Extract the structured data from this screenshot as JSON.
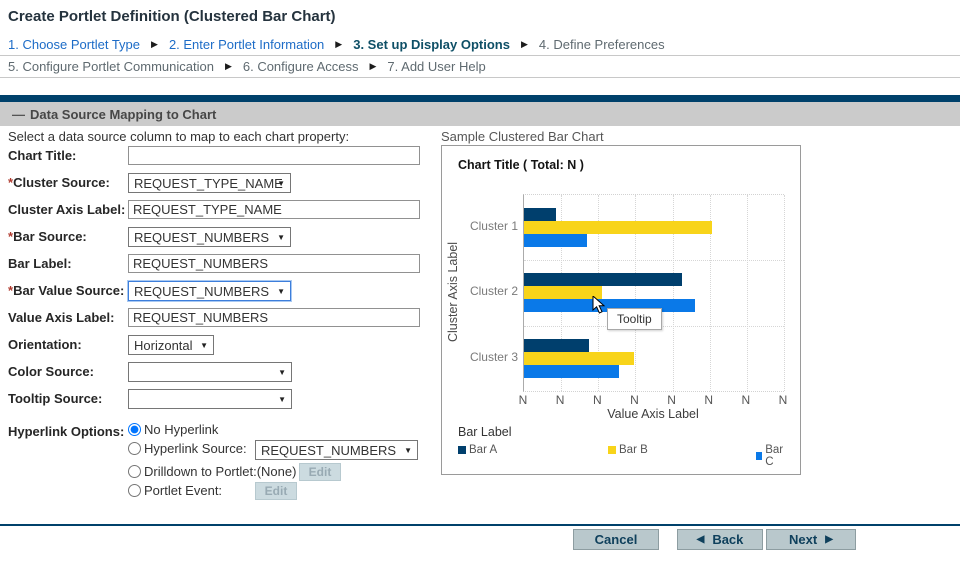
{
  "page": {
    "title": "Create Portlet Definition (Clustered Bar Chart)"
  },
  "icons": {
    "dropdown": "▼"
  },
  "wizard": {
    "separator": "▶",
    "row1": [
      {
        "label": "1. Choose Portlet Type",
        "state": "link"
      },
      {
        "label": "2. Enter Portlet Information",
        "state": "link"
      },
      {
        "label": "3. Set up Display Options",
        "state": "current"
      },
      {
        "label": "4. Define Preferences",
        "state": "upcoming"
      }
    ],
    "row2": [
      {
        "label": "5. Configure Portlet Communication",
        "state": "upcoming"
      },
      {
        "label": "6. Configure Access",
        "state": "upcoming"
      },
      {
        "label": "7. Add User Help",
        "state": "upcoming"
      }
    ]
  },
  "section": {
    "collapse_glyph": "—",
    "title": "Data Source Mapping to Chart"
  },
  "form": {
    "intro": "Select a data source column to map to each chart property:",
    "required_marker": "*",
    "chart_title": {
      "label": "Chart Title:",
      "value": ""
    },
    "cluster_source": {
      "label": "Cluster Source:",
      "value": "REQUEST_TYPE_NAME",
      "required": true
    },
    "cluster_axis_label": {
      "label": "Cluster Axis Label:",
      "value": "REQUEST_TYPE_NAME"
    },
    "bar_source": {
      "label": "Bar Source:",
      "value": "REQUEST_NUMBERS",
      "required": true
    },
    "bar_label": {
      "label": "Bar Label:",
      "value": "REQUEST_NUMBERS"
    },
    "bar_value_source": {
      "label": "Bar Value Source:",
      "value": "REQUEST_NUMBERS",
      "required": true,
      "focused": true
    },
    "value_axis_label": {
      "label": "Value Axis Label:",
      "value": "REQUEST_NUMBERS"
    },
    "orientation": {
      "label": "Orientation:",
      "value": "Horizontal"
    },
    "color_source": {
      "label": "Color Source:",
      "value": ""
    },
    "tooltip_source": {
      "label": "Tooltip Source:",
      "value": ""
    },
    "hyperlink": {
      "label": "Hyperlink Options:",
      "options": [
        {
          "label": "No Hyperlink",
          "selected": true
        },
        {
          "label": "Hyperlink Source:",
          "selected": false,
          "value": "REQUEST_NUMBERS"
        },
        {
          "label": "Drilldown to Portlet:",
          "selected": false,
          "value_note": "(None)",
          "button": "Edit"
        },
        {
          "label": "Portlet Event:",
          "selected": false,
          "button": "Edit"
        }
      ]
    }
  },
  "sample": {
    "caption": "Sample Clustered Bar Chart",
    "tooltip": "Tooltip"
  },
  "chart_data": {
    "type": "bar",
    "orientation": "horizontal",
    "title": "Chart Title ( Total: N )",
    "cluster_axis_label": "Cluster Axis Label",
    "value_axis_label": "Value Axis Label",
    "bar_label_heading": "Bar Label",
    "categories": [
      "Cluster 1",
      "Cluster 2",
      "Cluster 3"
    ],
    "series": [
      {
        "name": "Bar A",
        "color": "#003f6d",
        "values": [
          0.85,
          4.25,
          1.75
        ]
      },
      {
        "name": "Bar B",
        "color": "#f8d41a",
        "values": [
          5.05,
          2.1,
          2.95
        ]
      },
      {
        "name": "Bar C",
        "color": "#0a79e8",
        "values": [
          1.7,
          4.6,
          2.55
        ]
      }
    ],
    "x_tick_labels": [
      "N",
      "N",
      "N",
      "N",
      "N",
      "N",
      "N",
      "N"
    ],
    "xlim": [
      0,
      7
    ],
    "grid": "dotted",
    "legend_position": "bottom"
  },
  "footer": {
    "cancel": "Cancel",
    "back": "Back",
    "next": "Next",
    "back_glyph": "◀",
    "next_glyph": "▶"
  },
  "colors": {
    "accent_bar": "#00416b",
    "link": "#1d6cc7",
    "current_step": "#0e4f66",
    "required": "#b03a2e"
  }
}
